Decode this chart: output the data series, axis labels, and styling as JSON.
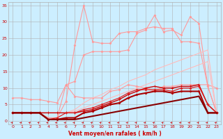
{
  "title": "",
  "xlabel": "Vent moyen/en rafales ( km/h )",
  "background_color": "#cceeff",
  "grid_color": "#b0b0b0",
  "text_color": "#cc0000",
  "xlim": [
    -0.5,
    23.5
  ],
  "ylim": [
    -1,
    36
  ],
  "xticks": [
    0,
    1,
    2,
    3,
    4,
    5,
    6,
    7,
    8,
    9,
    10,
    11,
    12,
    13,
    14,
    15,
    16,
    17,
    18,
    19,
    20,
    21,
    22,
    23
  ],
  "yticks": [
    0,
    5,
    10,
    15,
    20,
    25,
    30,
    35
  ],
  "series": [
    {
      "x": [
        0,
        1,
        2,
        3,
        4,
        5,
        6,
        7,
        8,
        9,
        10,
        11,
        12,
        13,
        14,
        15,
        16,
        17,
        18,
        19,
        20,
        21,
        22,
        23
      ],
      "y": [
        7,
        7,
        6.5,
        6.5,
        6,
        5.5,
        11,
        7.5,
        7,
        7,
        7,
        9,
        9.5,
        11,
        10.5,
        10,
        9,
        10.5,
        10.5,
        11,
        11,
        11,
        11,
        10
      ],
      "color": "#ff9999",
      "linewidth": 0.8,
      "marker": "D",
      "markersize": 1.5
    },
    {
      "x": [
        0,
        1,
        2,
        3,
        4,
        5,
        6,
        7,
        8,
        9,
        10,
        11,
        12,
        13,
        14,
        15,
        16,
        17,
        18,
        19,
        20,
        21,
        22,
        23
      ],
      "y": [
        2.5,
        2.5,
        2.5,
        2.5,
        1,
        1,
        11,
        12,
        20,
        21,
        21,
        21,
        21,
        21.5,
        26.5,
        27.5,
        32,
        27,
        27.5,
        26,
        31.5,
        29.5,
        10.5,
        2.5
      ],
      "color": "#ff9999",
      "linewidth": 0.8,
      "marker": "D",
      "markersize": 1.5
    },
    {
      "x": [
        0,
        1,
        2,
        3,
        4,
        5,
        6,
        7,
        8,
        9,
        10,
        11,
        12,
        13,
        14,
        15,
        16,
        17,
        18,
        19,
        20,
        21,
        22,
        23
      ],
      "y": [
        2.5,
        2.5,
        2.5,
        2.5,
        1,
        1,
        6,
        23,
        35,
        24,
        23.5,
        23.5,
        26.5,
        27,
        27,
        28,
        28.5,
        28,
        28,
        24,
        24,
        23.5,
        10.5,
        2.5
      ],
      "color": "#ff9999",
      "linewidth": 0.8,
      "marker": "D",
      "markersize": 1.5
    },
    {
      "x": [
        0,
        1,
        2,
        3,
        4,
        5,
        6,
        7,
        8,
        9,
        10,
        11,
        12,
        13,
        14,
        15,
        16,
        17,
        18,
        19,
        20,
        21,
        22,
        23
      ],
      "y": [
        2.5,
        2.5,
        2.5,
        2.5,
        2.5,
        2.5,
        2.5,
        3,
        4,
        5,
        6,
        7,
        8,
        9,
        10,
        11,
        12,
        13,
        14,
        15,
        16,
        17,
        18,
        2.5
      ],
      "color": "#ffbbbb",
      "linewidth": 0.8,
      "marker": null,
      "markersize": 0
    },
    {
      "x": [
        0,
        1,
        2,
        3,
        4,
        5,
        6,
        7,
        8,
        9,
        10,
        11,
        12,
        13,
        14,
        15,
        16,
        17,
        18,
        19,
        20,
        21,
        22,
        23
      ],
      "y": [
        2.5,
        2.5,
        2.5,
        2.5,
        2.5,
        2.5,
        2.5,
        3.5,
        5.5,
        7,
        8,
        9.5,
        10.5,
        12,
        13,
        14,
        15.5,
        16.5,
        17.5,
        18.5,
        19.5,
        20.5,
        21.5,
        2.5
      ],
      "color": "#ffbbbb",
      "linewidth": 0.8,
      "marker": null,
      "markersize": 0
    },
    {
      "x": [
        0,
        1,
        2,
        3,
        4,
        5,
        6,
        7,
        8,
        9,
        10,
        11,
        12,
        13,
        14,
        15,
        16,
        17,
        18,
        19,
        20,
        21,
        22,
        23
      ],
      "y": [
        2.5,
        2.5,
        2.5,
        2.5,
        2.5,
        2.5,
        2.5,
        2.5,
        3,
        3.5,
        4.5,
        5.5,
        6.5,
        8,
        9,
        10,
        10.5,
        10,
        10,
        10.5,
        10.5,
        11,
        5,
        2.5
      ],
      "color": "#cc0000",
      "linewidth": 1.0,
      "marker": "+",
      "markersize": 2.5
    },
    {
      "x": [
        0,
        1,
        2,
        3,
        4,
        5,
        6,
        7,
        8,
        9,
        10,
        11,
        12,
        13,
        14,
        15,
        16,
        17,
        18,
        19,
        20,
        21,
        22,
        23
      ],
      "y": [
        2.5,
        2.5,
        2.5,
        2.5,
        0.5,
        1,
        2.5,
        2.5,
        3.5,
        4,
        5,
        6,
        7,
        8.5,
        9.5,
        9.5,
        9.5,
        9.5,
        9,
        10,
        10,
        10.5,
        5,
        2.5
      ],
      "color": "#dd2222",
      "linewidth": 0.9,
      "marker": "D",
      "markersize": 1.5
    },
    {
      "x": [
        0,
        1,
        2,
        3,
        4,
        5,
        6,
        7,
        8,
        9,
        10,
        11,
        12,
        13,
        14,
        15,
        16,
        17,
        18,
        19,
        20,
        21,
        22,
        23
      ],
      "y": [
        2.5,
        2.5,
        2.5,
        2.5,
        0.5,
        0.5,
        1,
        1,
        2.5,
        3,
        4,
        5,
        5.5,
        7,
        8,
        8.5,
        9,
        9,
        8.5,
        9,
        9,
        9,
        2.5,
        2.5
      ],
      "color": "#aa0000",
      "linewidth": 1.5,
      "marker": "D",
      "markersize": 1.5
    },
    {
      "x": [
        0,
        1,
        2,
        3,
        4,
        5,
        6,
        7,
        8,
        9,
        10,
        11,
        12,
        13,
        14,
        15,
        16,
        17,
        18,
        19,
        20,
        21,
        22,
        23
      ],
      "y": [
        2.5,
        2.5,
        2.5,
        2.5,
        0.5,
        0.5,
        0.5,
        0.5,
        1,
        1.5,
        2,
        2.5,
        3,
        3.5,
        4,
        4.5,
        5,
        5.5,
        6,
        6.5,
        7,
        7.5,
        2.5,
        2.5
      ],
      "color": "#880000",
      "linewidth": 1.5,
      "marker": null,
      "markersize": 0
    }
  ]
}
